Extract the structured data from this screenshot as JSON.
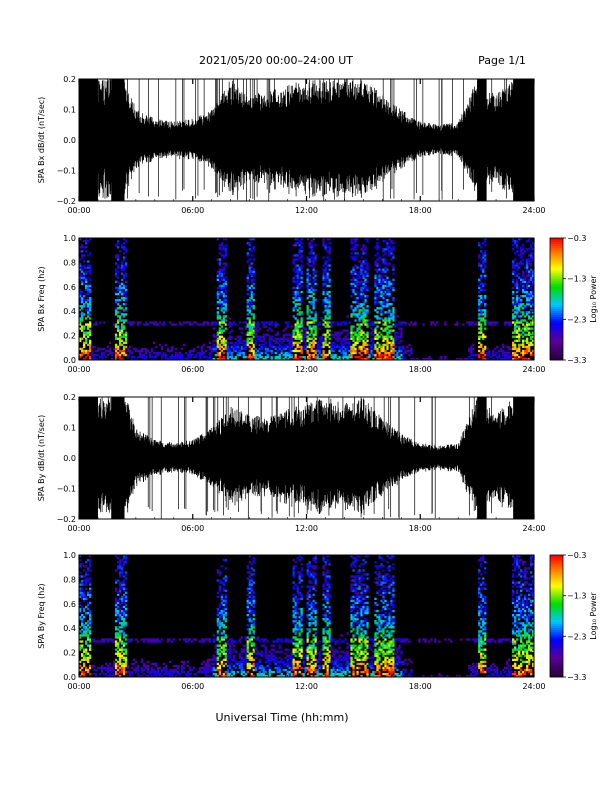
{
  "header": {
    "title": "2021/05/20  00:00–24:00 UT",
    "page": "Page 1/1"
  },
  "xlabel": "Universal Time (hh:mm)",
  "colors": {
    "trace": "#000000",
    "background": "#ffffff"
  },
  "chart_data": [
    {
      "type": "line",
      "ylabel": "SPA Bx dB/dt (nT/sec)",
      "xlim": [
        "00:00",
        "24:00"
      ],
      "ylim": [
        -0.2,
        0.2
      ],
      "x_ticks": [
        "00:00",
        "06:00",
        "12:00",
        "18:00",
        "24:00"
      ],
      "y_ticks": [
        "0.2",
        "0.1",
        "0.0",
        "−0.1",
        "−0.2"
      ],
      "envelope": {
        "x_hours": [
          0,
          1,
          1.5,
          2,
          2.5,
          3,
          4,
          5,
          6,
          7,
          8,
          9,
          10,
          11,
          12,
          13,
          14,
          15,
          16,
          17,
          18,
          19,
          20,
          21,
          22,
          23,
          24
        ],
        "amplitude": [
          0.2,
          0.2,
          0.2,
          0.2,
          0.2,
          0.1,
          0.07,
          0.06,
          0.07,
          0.1,
          0.2,
          0.15,
          0.16,
          0.18,
          0.2,
          0.2,
          0.2,
          0.2,
          0.15,
          0.1,
          0.06,
          0.05,
          0.06,
          0.2,
          0.15,
          0.2,
          0.2
        ]
      }
    },
    {
      "type": "heatmap",
      "ylabel": "SPA Bx Freq (hz)",
      "xlim": [
        "00:00",
        "24:00"
      ],
      "ylim": [
        0.0,
        1.0
      ],
      "x_ticks": [
        "00:00",
        "06:00",
        "12:00",
        "18:00",
        "24:00"
      ],
      "y_ticks": [
        "1.0",
        "0.8",
        "0.6",
        "0.4",
        "0.2",
        "0.0"
      ],
      "colorbar": {
        "label": "Log₁₀ Power",
        "range": [
          -3.3,
          -0.3
        ],
        "ticks": [
          "−0.3",
          "−1.3",
          "−2.3",
          "−3.3"
        ]
      }
    },
    {
      "type": "line",
      "ylabel": "SPA By dB/dt (nT/sec)",
      "xlim": [
        "00:00",
        "24:00"
      ],
      "ylim": [
        -0.2,
        0.2
      ],
      "x_ticks": [
        "00:00",
        "06:00",
        "12:00",
        "18:00",
        "24:00"
      ],
      "y_ticks": [
        "0.2",
        "0.1",
        "0.0",
        "−0.1",
        "−0.2"
      ],
      "envelope": {
        "x_hours": [
          0,
          1,
          1.5,
          2,
          2.5,
          3,
          4,
          5,
          6,
          7,
          8,
          9,
          10,
          11,
          12,
          13,
          14,
          15,
          16,
          17,
          18,
          19,
          20,
          21,
          22,
          23,
          24
        ],
        "amplitude": [
          0.2,
          0.2,
          0.2,
          0.2,
          0.2,
          0.1,
          0.06,
          0.05,
          0.06,
          0.1,
          0.17,
          0.14,
          0.14,
          0.16,
          0.18,
          0.2,
          0.18,
          0.2,
          0.13,
          0.08,
          0.05,
          0.04,
          0.05,
          0.2,
          0.15,
          0.2,
          0.2
        ]
      }
    },
    {
      "type": "heatmap",
      "ylabel": "SPA By Freq (hz)",
      "xlim": [
        "00:00",
        "24:00"
      ],
      "ylim": [
        0.0,
        1.0
      ],
      "x_ticks": [
        "00:00",
        "06:00",
        "12:00",
        "18:00",
        "24:00"
      ],
      "y_ticks": [
        "1.0",
        "0.8",
        "0.6",
        "0.4",
        "0.2",
        "0.0"
      ],
      "colorbar": {
        "label": "Log₁₀ Power",
        "range": [
          -3.3,
          -0.3
        ],
        "ticks": [
          "−0.3",
          "−1.3",
          "−2.3",
          "−3.3"
        ]
      }
    }
  ]
}
